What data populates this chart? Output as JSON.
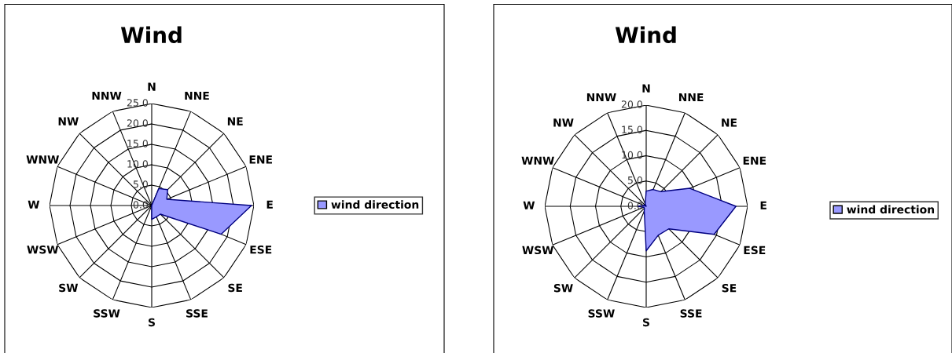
{
  "chart_data": [
    {
      "type": "radar",
      "title": "Wind",
      "categories": [
        "N",
        "NNE",
        "NE",
        "ENE",
        "E",
        "ESE",
        "SE",
        "SSE",
        "S",
        "SSW",
        "SW",
        "WSW",
        "W",
        "WNW",
        "NW",
        "NNW"
      ],
      "series": [
        {
          "name": "wind direction",
          "color": "#9999ff",
          "values": [
            0,
            4.5,
            5.5,
            4,
            24.4,
            18.4,
            3,
            3,
            3.4,
            0,
            0,
            0,
            0,
            0,
            0,
            0
          ]
        }
      ],
      "ylim": [
        0,
        25
      ],
      "yticks": [
        {
          "value": 0,
          "label": "0.0"
        },
        {
          "value": 5,
          "label": "5.0"
        },
        {
          "value": 10,
          "label": "10.0"
        },
        {
          "value": 15,
          "label": "15.0"
        },
        {
          "value": 20,
          "label": "20.0"
        },
        {
          "value": 25,
          "label": "25.0"
        }
      ],
      "grid": true,
      "legend": "right"
    },
    {
      "type": "radar",
      "title": "Wind",
      "categories": [
        "N",
        "NNE",
        "NE",
        "ENE",
        "E",
        "ESE",
        "SE",
        "SSE",
        "S",
        "SSW",
        "SW",
        "WSW",
        "W",
        "WNW",
        "NW",
        "NNW"
      ],
      "series": [
        {
          "name": "wind direction",
          "color": "#9999ff",
          "values": [
            3,
            3.6,
            4.1,
            9.3,
            17.7,
            14.5,
            6.3,
            6.2,
            8.8,
            1,
            0.5,
            0.5,
            1.7,
            0.5,
            0,
            0.5
          ]
        }
      ],
      "ylim": [
        0,
        20
      ],
      "yticks": [
        {
          "value": 0,
          "label": "0.0"
        },
        {
          "value": 5,
          "label": "5.0"
        },
        {
          "value": 10,
          "label": "10.0"
        },
        {
          "value": 15,
          "label": "15.0"
        },
        {
          "value": 20,
          "label": "20.0"
        }
      ],
      "grid": true,
      "legend": "right"
    }
  ]
}
